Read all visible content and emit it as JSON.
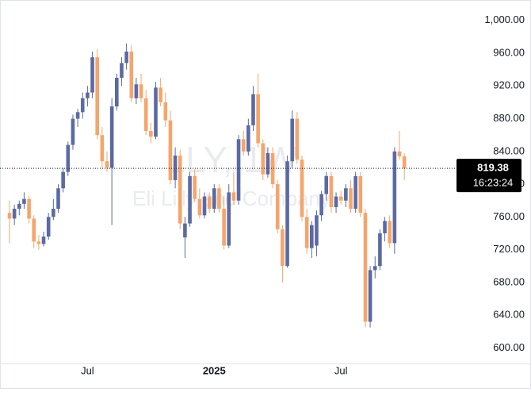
{
  "chart_data": {
    "type": "candlestick",
    "watermark_symbol": "LLY, 1W",
    "watermark_name": "Eli Lilly and Company",
    "countdown": "16:23:24",
    "up_color": "#5b6aa3",
    "down_color": "#f5a56c",
    "categories": [
      null,
      null,
      null,
      null,
      null,
      null,
      null,
      null,
      null,
      null,
      null,
      null,
      null,
      null,
      null,
      null,
      "Jul",
      null,
      null,
      null,
      null,
      null,
      null,
      null,
      null,
      null,
      null,
      null,
      null,
      null,
      null,
      null,
      null,
      null,
      null,
      null,
      null,
      null,
      null,
      null,
      null,
      null,
      "2025",
      null,
      null,
      null,
      null,
      null,
      null,
      null,
      null,
      null,
      null,
      null,
      null,
      null,
      null,
      null,
      null,
      null,
      null,
      null,
      null,
      null,
      null,
      null,
      null,
      null,
      "Jul",
      null,
      null,
      null,
      null,
      null,
      null,
      null,
      null,
      null,
      null,
      null,
      null,
      null
    ],
    "open": [
      765,
      758,
      770,
      776,
      782,
      758,
      730,
      727,
      736,
      760,
      770,
      795,
      815,
      848,
      880,
      888,
      905,
      912,
      955,
      860,
      828,
      820,
      895,
      930,
      948,
      962,
      905,
      922,
      905,
      865,
      858,
      918,
      900,
      878,
      805,
      835,
      735,
      752,
      810,
      782,
      762,
      785,
      770,
      795,
      770,
      725,
      790,
      780,
      855,
      840,
      872,
      910,
      850,
      812,
      838,
      800,
      745,
      700,
      828,
      880,
      830,
      760,
      722,
      725,
      762,
      788,
      810,
      772,
      785,
      780,
      795,
      770,
      810,
      765,
      632,
      695,
      700,
      740,
      755,
      728,
      840,
      834
    ],
    "high": [
      780,
      775,
      780,
      790,
      786,
      762,
      738,
      742,
      765,
      782,
      800,
      820,
      852,
      885,
      892,
      912,
      920,
      962,
      965,
      870,
      840,
      905,
      935,
      955,
      972,
      970,
      930,
      935,
      915,
      875,
      925,
      930,
      912,
      890,
      845,
      842,
      760,
      815,
      818,
      795,
      790,
      790,
      800,
      800,
      785,
      800,
      815,
      860,
      865,
      880,
      920,
      935,
      855,
      845,
      845,
      805,
      750,
      835,
      890,
      888,
      835,
      770,
      755,
      768,
      792,
      815,
      815,
      790,
      792,
      800,
      805,
      815,
      815,
      770,
      700,
      712,
      745,
      760,
      762,
      845,
      865,
      838
    ],
    "low": [
      728,
      750,
      762,
      770,
      752,
      722,
      720,
      724,
      732,
      756,
      765,
      790,
      810,
      842,
      870,
      880,
      895,
      905,
      855,
      820,
      815,
      750,
      890,
      920,
      940,
      900,
      898,
      900,
      860,
      850,
      855,
      895,
      870,
      800,
      795,
      745,
      710,
      748,
      778,
      758,
      758,
      765,
      765,
      765,
      720,
      722,
      775,
      775,
      835,
      835,
      865,
      845,
      805,
      808,
      795,
      740,
      680,
      698,
      820,
      825,
      755,
      715,
      710,
      712,
      755,
      780,
      765,
      765,
      775,
      772,
      765,
      765,
      760,
      625,
      625,
      685,
      695,
      730,
      722,
      715,
      830,
      805
    ],
    "close": [
      758,
      770,
      776,
      782,
      758,
      730,
      727,
      736,
      760,
      770,
      795,
      815,
      848,
      880,
      888,
      905,
      912,
      955,
      860,
      828,
      820,
      895,
      930,
      948,
      962,
      905,
      922,
      905,
      865,
      858,
      918,
      900,
      878,
      805,
      835,
      752,
      752,
      810,
      782,
      762,
      785,
      770,
      795,
      770,
      725,
      790,
      780,
      855,
      840,
      872,
      910,
      850,
      812,
      838,
      800,
      745,
      700,
      828,
      880,
      830,
      760,
      722,
      750,
      762,
      788,
      810,
      772,
      785,
      780,
      795,
      770,
      810,
      765,
      632,
      695,
      700,
      740,
      755,
      728,
      840,
      834,
      819.38
    ],
    "ylim": [
      581,
      1025
    ],
    "yticks": [
      {
        "value": 600,
        "label": "600.00"
      },
      {
        "value": 640,
        "label": "640.00"
      },
      {
        "value": 680,
        "label": "680.00"
      },
      {
        "value": 720,
        "label": "720.00"
      },
      {
        "value": 760,
        "label": "760.00"
      },
      {
        "value": 800,
        "label": "800.00"
      },
      {
        "value": 840,
        "label": "840.00"
      },
      {
        "value": 880,
        "label": "880.00"
      },
      {
        "value": 920,
        "label": "920.00"
      },
      {
        "value": 960,
        "label": "960.00"
      },
      {
        "value": 1000,
        "label": "1,000.00"
      }
    ]
  }
}
